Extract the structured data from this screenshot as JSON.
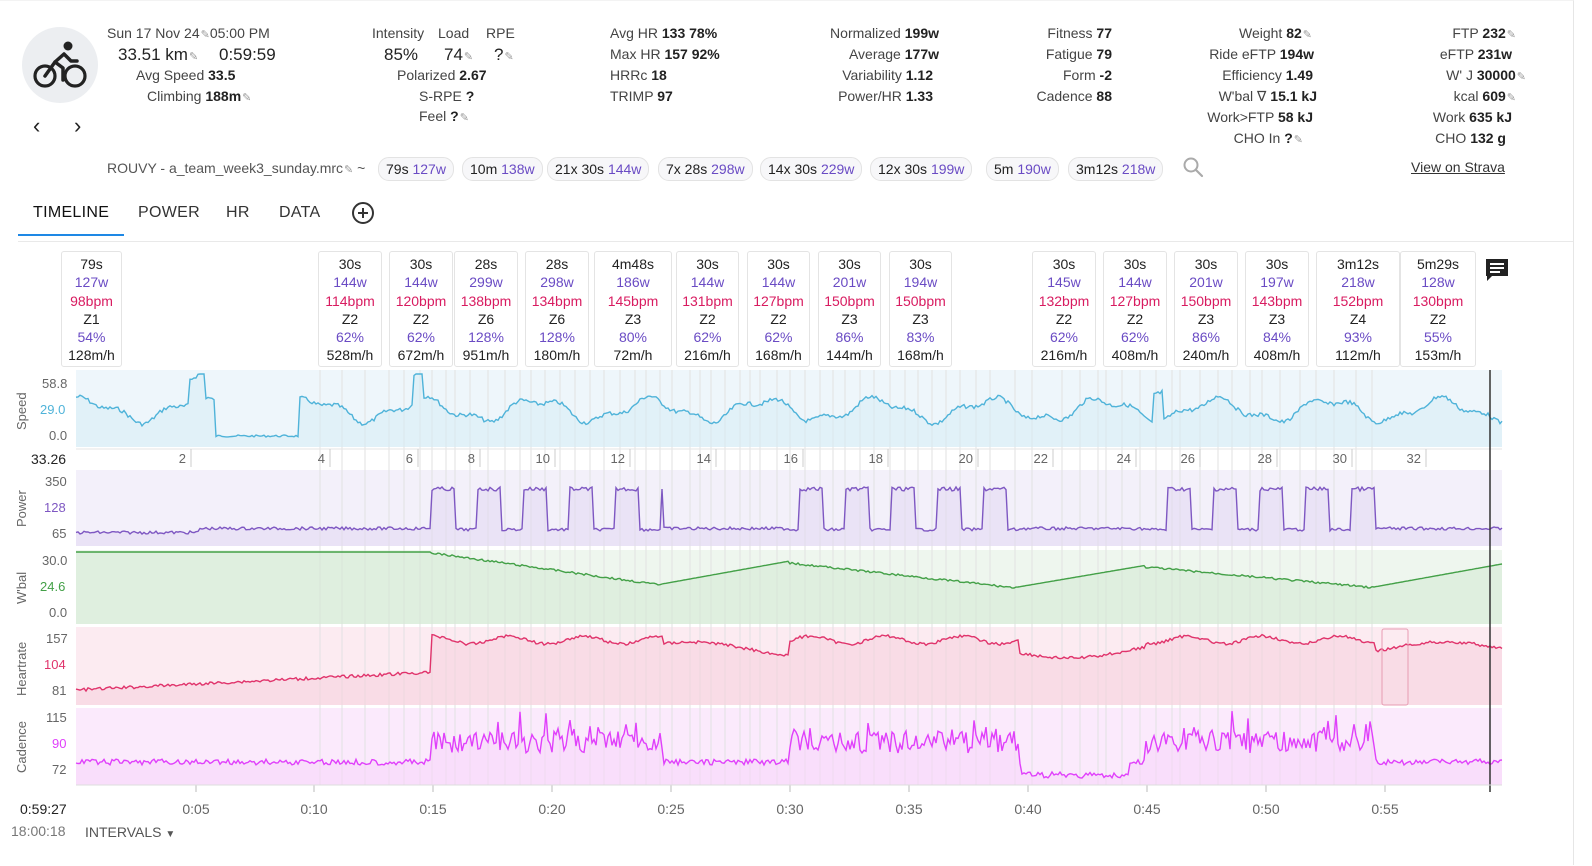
{
  "header": {
    "date": "Sun 17 Nov 24",
    "time": "05:00 PM",
    "distance": "33.51 km",
    "duration": "0:59:59",
    "avg_speed_label": "Avg Speed",
    "avg_speed": "33.5",
    "climbing_label": "Climbing",
    "climbing": "188m",
    "intensity_label": "Intensity",
    "intensity": "85%",
    "load_label": "Load",
    "load": "74",
    "rpe_label": "RPE",
    "rpe": "?",
    "polarized_label": "Polarized",
    "polarized": "2.67",
    "srpe_label": "S-RPE",
    "srpe": "?",
    "feel_label": "Feel",
    "feel": "?",
    "avg_hr_label": "Avg HR",
    "avg_hr": "133  78%",
    "max_hr_label": "Max HR",
    "max_hr": "157  92%",
    "hrrc_label": "HRRc",
    "hrrc": "18",
    "trimp_label": "TRIMP",
    "trimp": "97",
    "normalized_label": "Normalized",
    "normalized": "199w",
    "average_label": "Average",
    "average": "177w",
    "variability_label": "Variability",
    "variability": "1.12",
    "power_hr_label": "Power/HR",
    "power_hr": "1.33",
    "fitness_label": "Fitness",
    "fitness": "77",
    "fatigue_label": "Fatigue",
    "fatigue": "79",
    "form_label": "Form",
    "form": "-2",
    "cadence_label": "Cadence",
    "cadence": "88",
    "weight_label": "Weight",
    "weight": "82",
    "ride_eftp_label": "Ride eFTP",
    "ride_eftp": "194w",
    "efficiency_label": "Efficiency",
    "efficiency": "1.49",
    "wbal_label": "W'bal ∇",
    "wbal": "15.1 kJ",
    "work_ftp_label": "Work>FTP",
    "work_ftp": "58 kJ",
    "cho_in_label": "CHO In",
    "cho_in": "?",
    "ftp_label": "FTP",
    "ftp": "232",
    "eftp_label": "eFTP",
    "eftp": "231w",
    "wprime_label": "W' J",
    "wprime": "30000",
    "kcal_label": "kcal",
    "kcal": "609",
    "work_label": "Work",
    "work": "635 kJ",
    "cho_label": "CHO",
    "cho": "132 g",
    "filename": "ROUVY - a_team_week3_sunday.mrc",
    "tilde": "~",
    "view_on_strava": "View on Strava"
  },
  "chips": [
    {
      "a": "79s",
      "w": "127w"
    },
    {
      "a": "10m",
      "w": "138w"
    },
    {
      "a": "21x  30s",
      "w": "144w"
    },
    {
      "a": "7x  28s",
      "w": "298w"
    },
    {
      "a": "14x  30s",
      "w": "229w"
    },
    {
      "a": "12x  30s",
      "w": "199w"
    },
    {
      "a": "5m",
      "w": "190w"
    },
    {
      "a": "3m12s",
      "w": "218w"
    }
  ],
  "tabs": [
    "TIMELINE",
    "POWER",
    "HR",
    "DATA"
  ],
  "intervals": [
    {
      "dur": "79s",
      "w": "127w",
      "hr": "98bpm",
      "zone": "Z1",
      "pct": "54%",
      "vam": "128m/h"
    },
    {
      "dur": "30s",
      "w": "144w",
      "hr": "114bpm",
      "zone": "Z2",
      "pct": "62%",
      "vam": "528m/h"
    },
    {
      "dur": "30s",
      "w": "144w",
      "hr": "120bpm",
      "zone": "Z2",
      "pct": "62%",
      "vam": "672m/h"
    },
    {
      "dur": "28s",
      "w": "299w",
      "hr": "138bpm",
      "zone": "Z6",
      "pct": "128%",
      "vam": "951m/h"
    },
    {
      "dur": "28s",
      "w": "298w",
      "hr": "134bpm",
      "zone": "Z6",
      "pct": "128%",
      "vam": "180m/h"
    },
    {
      "dur": "4m48s",
      "w": "186w",
      "hr": "145bpm",
      "zone": "Z3",
      "pct": "80%",
      "vam": "72m/h"
    },
    {
      "dur": "30s",
      "w": "144w",
      "hr": "131bpm",
      "zone": "Z2",
      "pct": "62%",
      "vam": "216m/h"
    },
    {
      "dur": "30s",
      "w": "144w",
      "hr": "127bpm",
      "zone": "Z2",
      "pct": "62%",
      "vam": "168m/h"
    },
    {
      "dur": "30s",
      "w": "201w",
      "hr": "150bpm",
      "zone": "Z3",
      "pct": "86%",
      "vam": "144m/h"
    },
    {
      "dur": "30s",
      "w": "194w",
      "hr": "150bpm",
      "zone": "Z3",
      "pct": "83%",
      "vam": "168m/h"
    },
    {
      "dur": "30s",
      "w": "145w",
      "hr": "132bpm",
      "zone": "Z2",
      "pct": "62%",
      "vam": "216m/h"
    },
    {
      "dur": "30s",
      "w": "144w",
      "hr": "127bpm",
      "zone": "Z2",
      "pct": "62%",
      "vam": "408m/h"
    },
    {
      "dur": "30s",
      "w": "201w",
      "hr": "150bpm",
      "zone": "Z3",
      "pct": "86%",
      "vam": "240m/h"
    },
    {
      "dur": "30s",
      "w": "197w",
      "hr": "143bpm",
      "zone": "Z3",
      "pct": "84%",
      "vam": "408m/h"
    },
    {
      "dur": "3m12s",
      "w": "218w",
      "hr": "152bpm",
      "zone": "Z4",
      "pct": "93%",
      "vam": "112m/h"
    },
    {
      "dur": "5m29s",
      "w": "128w",
      "hr": "130bpm",
      "zone": "Z2",
      "pct": "55%",
      "vam": "153m/h"
    }
  ],
  "charts": {
    "speed_label": "Speed",
    "speed_ticks": [
      "58.8",
      "29.0",
      "0.0"
    ],
    "distance_start": "33.26",
    "distance_ticks": [
      "2",
      "4",
      "6",
      "8",
      "10",
      "12",
      "14",
      "16",
      "18",
      "20",
      "22",
      "24",
      "26",
      "28",
      "30",
      "32"
    ],
    "power_label": "Power",
    "power_ticks": [
      "350",
      "128",
      "65"
    ],
    "wbal_label": "W'bal",
    "wbal_ticks": [
      "30.0",
      "24.6",
      "0.0"
    ],
    "hr_label": "Heartrate",
    "hr_ticks": [
      "157",
      "104",
      "81"
    ],
    "cadence_label": "Cadence",
    "cadence_ticks": [
      "115",
      "90",
      "72"
    ],
    "time_cursor": "0:59:27",
    "clock": "18:00:18",
    "time_ticks": [
      "0:05",
      "0:10",
      "0:15",
      "0:20",
      "0:25",
      "0:30",
      "0:35",
      "0:40",
      "0:45",
      "0:50",
      "0:55"
    ],
    "intervals_button": "INTERVALS"
  },
  "colors": {
    "speed": "#4fb3d9",
    "power": "#7e57c2",
    "wbal": "#43a047",
    "heartrate": "#e0336b",
    "cadence": "#e040fb",
    "accent": "#1e88e5"
  }
}
